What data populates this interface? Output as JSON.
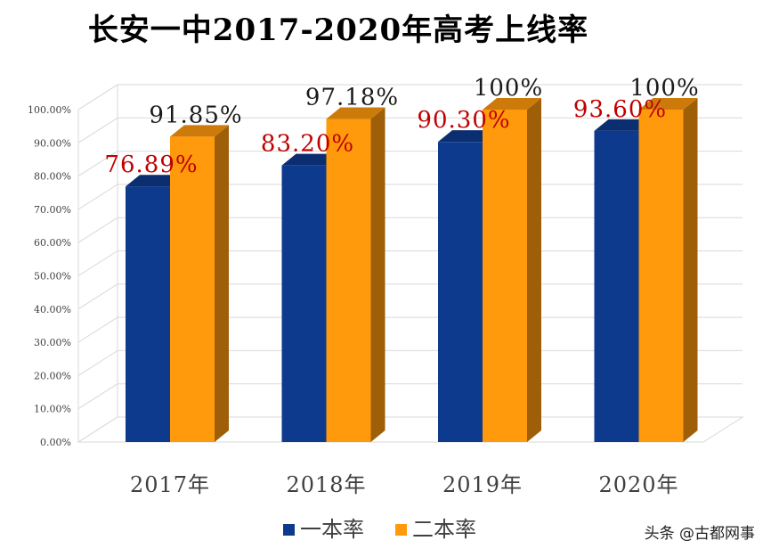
{
  "title": "长安一中2017-2020年高考上线率",
  "watermark": "头条 @古都网事",
  "chart_data": {
    "type": "bar",
    "title": "长安一中2017-2020年高考上线率",
    "categories": [
      "2017年",
      "2018年",
      "2019年",
      "2020年"
    ],
    "series": [
      {
        "name": "一本率",
        "values": [
          76.89,
          83.2,
          90.3,
          93.6
        ],
        "labels": [
          "76.89%",
          "83.20%",
          "90.30%",
          "93.60%"
        ],
        "color": "#0d3a8c",
        "label_color": "#c00000"
      },
      {
        "name": "二本率",
        "values": [
          91.85,
          97.18,
          100,
          100
        ],
        "labels": [
          "91.85%",
          "97.18%",
          "100%",
          "100%"
        ],
        "color": "#ff9a0d",
        "label_color": "#1a1a1a"
      }
    ],
    "ylim": [
      0,
      100
    ],
    "yticks": [
      "0.00%",
      "10.00%",
      "20.00%",
      "30.00%",
      "40.00%",
      "50.00%",
      "60.00%",
      "70.00%",
      "80.00%",
      "90.00%",
      "100.00%"
    ],
    "grid": true,
    "legend": "bottom",
    "style": "3d-column"
  }
}
